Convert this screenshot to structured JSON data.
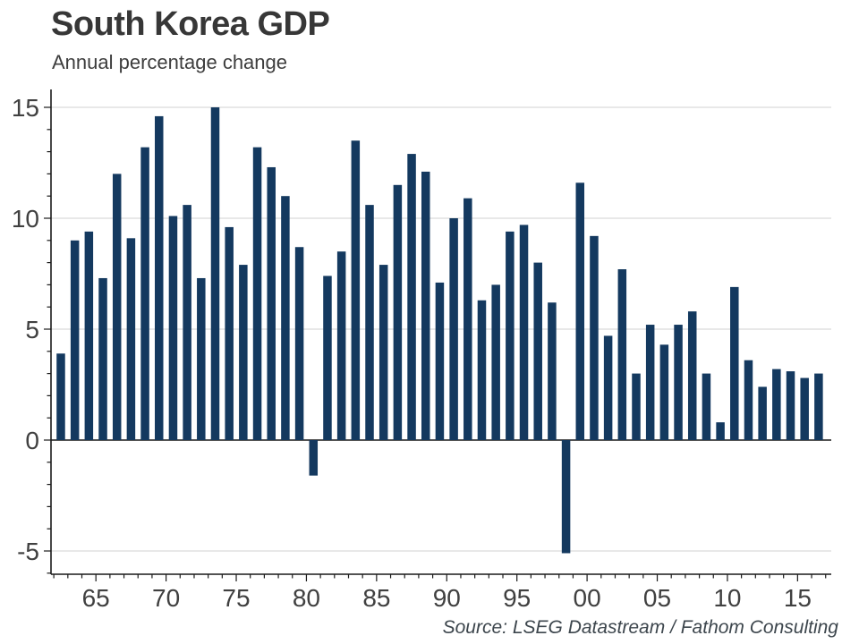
{
  "header": {
    "title": "South Korea GDP",
    "subtitle": "Annual percentage change"
  },
  "footer": {
    "source": "Source: LSEG Datastream / Fathom Consulting"
  },
  "colors": {
    "bar": "#14395f",
    "grid": "#d9d9d9",
    "axis": "#1a1a1a",
    "tick_label": "#404040",
    "title": "#373737",
    "subtitle": "#3d3d3d",
    "source": "#3d464d"
  },
  "chart_data": {
    "type": "bar",
    "title": "South Korea GDP",
    "subtitle": "Annual percentage change",
    "source": "Source: LSEG Datastream / Fathom Consulting",
    "xlabel": "",
    "ylabel": "",
    "categories": [
      1962,
      1963,
      1964,
      1965,
      1966,
      1967,
      1968,
      1969,
      1970,
      1971,
      1972,
      1973,
      1974,
      1975,
      1976,
      1977,
      1978,
      1979,
      1980,
      1981,
      1982,
      1983,
      1984,
      1985,
      1986,
      1987,
      1988,
      1989,
      1990,
      1991,
      1992,
      1993,
      1994,
      1995,
      1996,
      1997,
      1998,
      1999,
      2000,
      2001,
      2002,
      2003,
      2004,
      2005,
      2006,
      2007,
      2008,
      2009,
      2010,
      2011,
      2012,
      2013,
      2014,
      2015,
      2016
    ],
    "values": [
      3.9,
      9.0,
      9.4,
      7.3,
      12.0,
      9.1,
      13.2,
      14.6,
      10.1,
      10.6,
      7.3,
      15.0,
      9.6,
      7.9,
      13.2,
      12.3,
      11.0,
      8.7,
      -1.6,
      7.4,
      8.5,
      13.5,
      10.6,
      7.9,
      11.5,
      12.9,
      12.1,
      7.1,
      10.0,
      10.9,
      6.3,
      7.0,
      9.4,
      9.7,
      8.0,
      6.2,
      -5.1,
      11.6,
      9.2,
      4.7,
      7.7,
      3.0,
      5.2,
      4.3,
      5.2,
      5.8,
      3.0,
      0.8,
      6.9,
      3.6,
      2.4,
      3.2,
      3.1,
      2.8,
      3.0
    ],
    "ylim": [
      -6.05,
      15.6
    ],
    "xlim": [
      1961.8,
      2017.4
    ],
    "yticks": [
      {
        "value": -5,
        "label": "-5"
      },
      {
        "value": 0,
        "label": "0"
      },
      {
        "value": 5,
        "label": "5"
      },
      {
        "value": 10,
        "label": "10"
      },
      {
        "value": 15,
        "label": "15"
      }
    ],
    "xticks": [
      {
        "value": 1965,
        "label": "65"
      },
      {
        "value": 1970,
        "label": "70"
      },
      {
        "value": 1975,
        "label": "75"
      },
      {
        "value": 1980,
        "label": "80"
      },
      {
        "value": 1985,
        "label": "85"
      },
      {
        "value": 1990,
        "label": "90"
      },
      {
        "value": 1995,
        "label": "95"
      },
      {
        "value": 2000,
        "label": "00"
      },
      {
        "value": 2005,
        "label": "05"
      },
      {
        "value": 2010,
        "label": "10"
      },
      {
        "value": 2015,
        "label": "15"
      }
    ],
    "gridline_values": [
      15,
      10,
      5,
      -5
    ],
    "grid": true,
    "legend": false
  }
}
